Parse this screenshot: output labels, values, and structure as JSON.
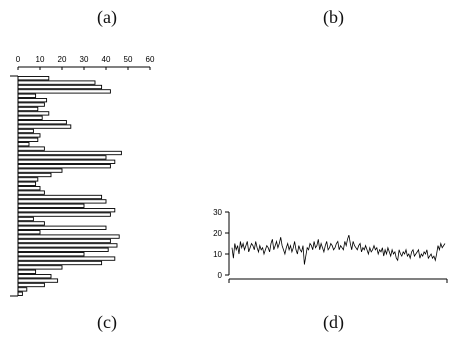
{
  "panels": {
    "a": {
      "label": "(a)"
    },
    "b": {
      "label": "(b)"
    },
    "c": {
      "label": "(c)"
    },
    "d": {
      "label": "(d)"
    }
  },
  "chart_data": [
    {
      "panel": "c",
      "type": "bar",
      "orientation": "horizontal",
      "title": "",
      "xlabel": "",
      "ylabel": "",
      "xlim": [
        0,
        60
      ],
      "x_ticks": [
        "0",
        "10",
        "20",
        "30",
        "40",
        "50",
        "60"
      ],
      "grid": false,
      "series": [
        {
          "values": [
            14,
            35,
            38,
            42,
            8,
            13,
            12,
            9,
            14,
            11,
            22,
            24,
            7,
            10,
            9,
            5,
            12,
            47,
            40,
            44,
            42,
            20,
            15,
            9,
            8,
            10,
            12,
            38,
            40,
            30,
            44,
            42,
            7,
            12,
            40,
            10,
            46,
            42,
            45,
            41,
            30,
            44,
            38,
            20,
            8,
            15,
            18,
            12,
            4,
            2
          ]
        }
      ]
    },
    {
      "panel": "d",
      "type": "line",
      "title": "",
      "xlabel": "",
      "ylabel": "",
      "ylim": [
        0,
        30
      ],
      "y_ticks": [
        "0",
        "10",
        "20",
        "30"
      ],
      "grid": false,
      "series": [
        {
          "values": [
            13,
            8,
            15,
            12,
            14,
            10,
            16,
            13,
            15,
            12,
            14,
            16,
            11,
            13,
            15,
            14,
            12,
            16,
            13,
            11,
            14,
            12,
            13,
            10,
            12,
            14,
            13,
            11,
            15,
            17,
            12,
            14,
            16,
            13,
            15,
            18,
            14,
            12,
            10,
            13,
            15,
            12,
            14,
            11,
            13,
            16,
            12,
            10,
            14,
            12,
            11,
            14,
            5,
            9,
            13,
            12,
            15,
            14,
            12,
            16,
            13,
            14,
            17,
            12,
            15,
            13,
            11,
            14,
            16,
            12,
            13,
            15,
            14,
            12,
            13,
            15,
            16,
            12,
            14,
            13,
            12,
            16,
            14,
            17,
            19,
            15,
            12,
            16,
            14,
            13,
            12,
            14,
            15,
            11,
            13,
            12,
            14,
            12,
            10,
            13,
            11,
            12,
            14,
            12,
            13,
            10,
            12,
            11,
            13,
            9,
            12,
            10,
            13,
            11,
            9,
            12,
            10,
            11,
            8,
            7,
            12,
            10,
            9,
            11,
            10,
            12,
            9,
            10,
            8,
            11,
            12,
            9,
            10,
            11,
            12,
            8,
            10,
            9,
            11,
            10,
            12,
            8,
            9,
            10,
            8,
            9,
            7,
            10,
            14,
            12,
            15,
            13,
            14,
            15
          ]
        }
      ]
    }
  ]
}
